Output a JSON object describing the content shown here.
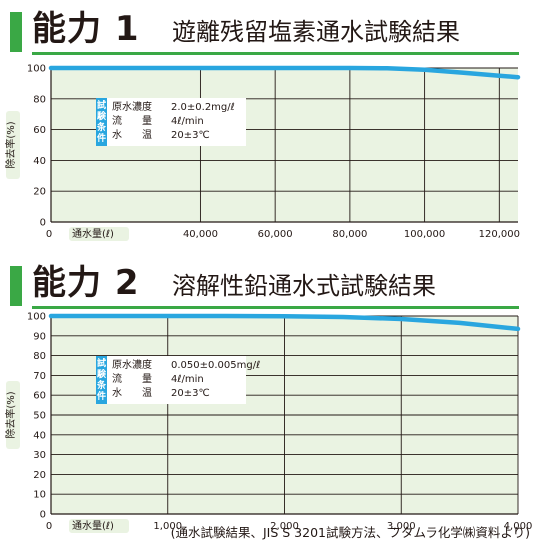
{
  "sections": [
    {
      "number_title": "能力 1",
      "subtitle": "遊離残留塩素通水試験結果"
    },
    {
      "number_title": "能力 2",
      "subtitle": "溶解性鉛通水式試験結果"
    }
  ],
  "footnote": "(通水試験結果、JIS S 3201試験方法、フタムラ化学㈱資料より)",
  "colors": {
    "accent_green": "#3aa845",
    "plot_background": "#eaf3e2",
    "curve_blue": "#29a6df",
    "label_box_blue": "#29a6df"
  },
  "chart_data": [
    {
      "type": "line",
      "xlabel": "通水量(ℓ)",
      "ylabel": "除去率(%)",
      "xlim": [
        0,
        125000
      ],
      "ylim": [
        0,
        100
      ],
      "xticks": [
        0,
        40000,
        60000,
        80000,
        100000,
        120000
      ],
      "xtick_labels": [
        "0",
        "40,000",
        "60,000",
        "80,000",
        "100,000",
        "120,000"
      ],
      "yticks": [
        0,
        20,
        40,
        60,
        80,
        100
      ],
      "ytick_labels": [
        "0",
        "20",
        "40",
        "60",
        "80",
        "100"
      ],
      "grid": true,
      "series": [
        {
          "x": [
            0,
            20000,
            40000,
            60000,
            80000,
            90000,
            100000,
            110000,
            120000,
            125000
          ],
          "y": [
            100,
            100,
            100,
            100,
            100,
            99.8,
            98.8,
            97,
            95,
            94
          ]
        }
      ],
      "conditions": {
        "box_label": "試験条件",
        "rows": [
          {
            "label": "原水濃度",
            "value": "2.0±0.2mg/ℓ"
          },
          {
            "label": "流　　量",
            "value": "4ℓ/min"
          },
          {
            "label": "水　　温",
            "value": "20±3℃"
          }
        ]
      }
    },
    {
      "type": "line",
      "xlabel": "通水量(ℓ)",
      "ylabel": "除去率(%)",
      "xlim": [
        0,
        4000
      ],
      "ylim": [
        0,
        100
      ],
      "xticks": [
        0,
        1000,
        2000,
        3000,
        4000
      ],
      "xtick_labels": [
        "0",
        "1,000",
        "2,000",
        "3,000",
        "4,000"
      ],
      "yticks": [
        0,
        10,
        20,
        30,
        40,
        50,
        60,
        70,
        80,
        90,
        100
      ],
      "ytick_labels": [
        "0",
        "10",
        "20",
        "30",
        "40",
        "50",
        "60",
        "70",
        "80",
        "90",
        "100"
      ],
      "grid": true,
      "series": [
        {
          "x": [
            0,
            500,
            1000,
            1500,
            2000,
            2500,
            3000,
            3500,
            4000
          ],
          "y": [
            100,
            100,
            100,
            100,
            99.9,
            99.5,
            98.5,
            96.5,
            93.5
          ]
        }
      ],
      "conditions": {
        "box_label": "試験条件",
        "rows": [
          {
            "label": "原水濃度",
            "value": "0.050±0.005mg/ℓ"
          },
          {
            "label": "流　　量",
            "value": "4ℓ/min"
          },
          {
            "label": "水　　温",
            "value": "20±3℃"
          }
        ]
      }
    }
  ]
}
